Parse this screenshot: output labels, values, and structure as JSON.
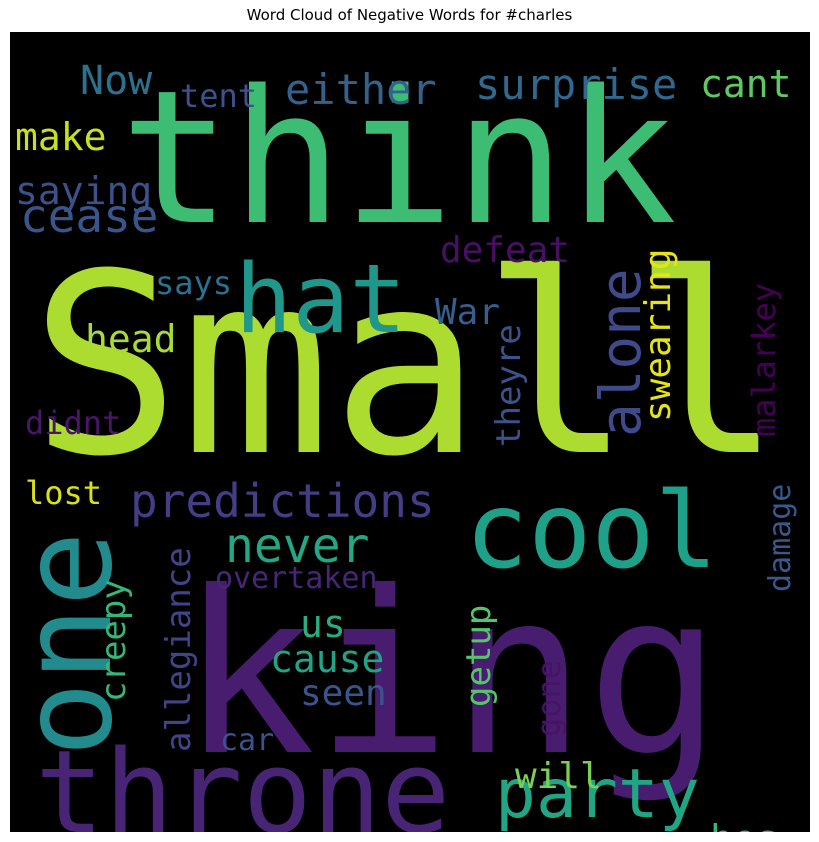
{
  "chart_data": {
    "type": "wordcloud",
    "title": "Word Cloud of Negative Words for #charles",
    "background": "#000000",
    "colormap": "viridis",
    "words": [
      {
        "text": "Small",
        "color": "#addc30"
      },
      {
        "text": "king",
        "color": "#481c6e"
      },
      {
        "text": "think",
        "color": "#3dbc74"
      },
      {
        "text": "throne",
        "color": "#482475"
      },
      {
        "text": "one",
        "color": "#228b8d"
      },
      {
        "text": "cool",
        "color": "#1fa088"
      },
      {
        "text": "hat",
        "color": "#1f978b"
      },
      {
        "text": "party",
        "color": "#21a685"
      },
      {
        "text": "predictions",
        "color": "#433e85"
      },
      {
        "text": "never",
        "color": "#22a884"
      },
      {
        "text": "alone",
        "color": "#3e4a89"
      },
      {
        "text": "cease",
        "color": "#39568c"
      },
      {
        "text": "surprise",
        "color": "#31688e"
      },
      {
        "text": "either",
        "color": "#33638d"
      },
      {
        "text": "Now",
        "color": "#2c728e"
      },
      {
        "text": "cant",
        "color": "#5ec962"
      },
      {
        "text": "tent",
        "color": "#3b528b"
      },
      {
        "text": "make",
        "color": "#c8e020"
      },
      {
        "text": "saying",
        "color": "#3b528b"
      },
      {
        "text": "defeat",
        "color": "#471063"
      },
      {
        "text": "swearing",
        "color": "#e5e419"
      },
      {
        "text": "malarkey",
        "color": "#440154"
      },
      {
        "text": "says",
        "color": "#2c728e"
      },
      {
        "text": "War",
        "color": "#355f8d"
      },
      {
        "text": "head",
        "color": "#a8db34"
      },
      {
        "text": "theyre",
        "color": "#3b528b"
      },
      {
        "text": "didnt",
        "color": "#481769"
      },
      {
        "text": "lost",
        "color": "#d8e219"
      },
      {
        "text": "creepy",
        "color": "#35b779"
      },
      {
        "text": "allegiance",
        "color": "#414487"
      },
      {
        "text": "overtaken",
        "color": "#482677"
      },
      {
        "text": "damage",
        "color": "#38598c"
      },
      {
        "text": "us",
        "color": "#29af7f"
      },
      {
        "text": "getup",
        "color": "#54c568"
      },
      {
        "text": "cause",
        "color": "#20a486"
      },
      {
        "text": "seen",
        "color": "#39568c"
      },
      {
        "text": "gone",
        "color": "#471365"
      },
      {
        "text": "car",
        "color": "#3b528b"
      },
      {
        "text": "will",
        "color": "#7ad151"
      },
      {
        "text": "hes",
        "color": "#35b779"
      }
    ]
  }
}
